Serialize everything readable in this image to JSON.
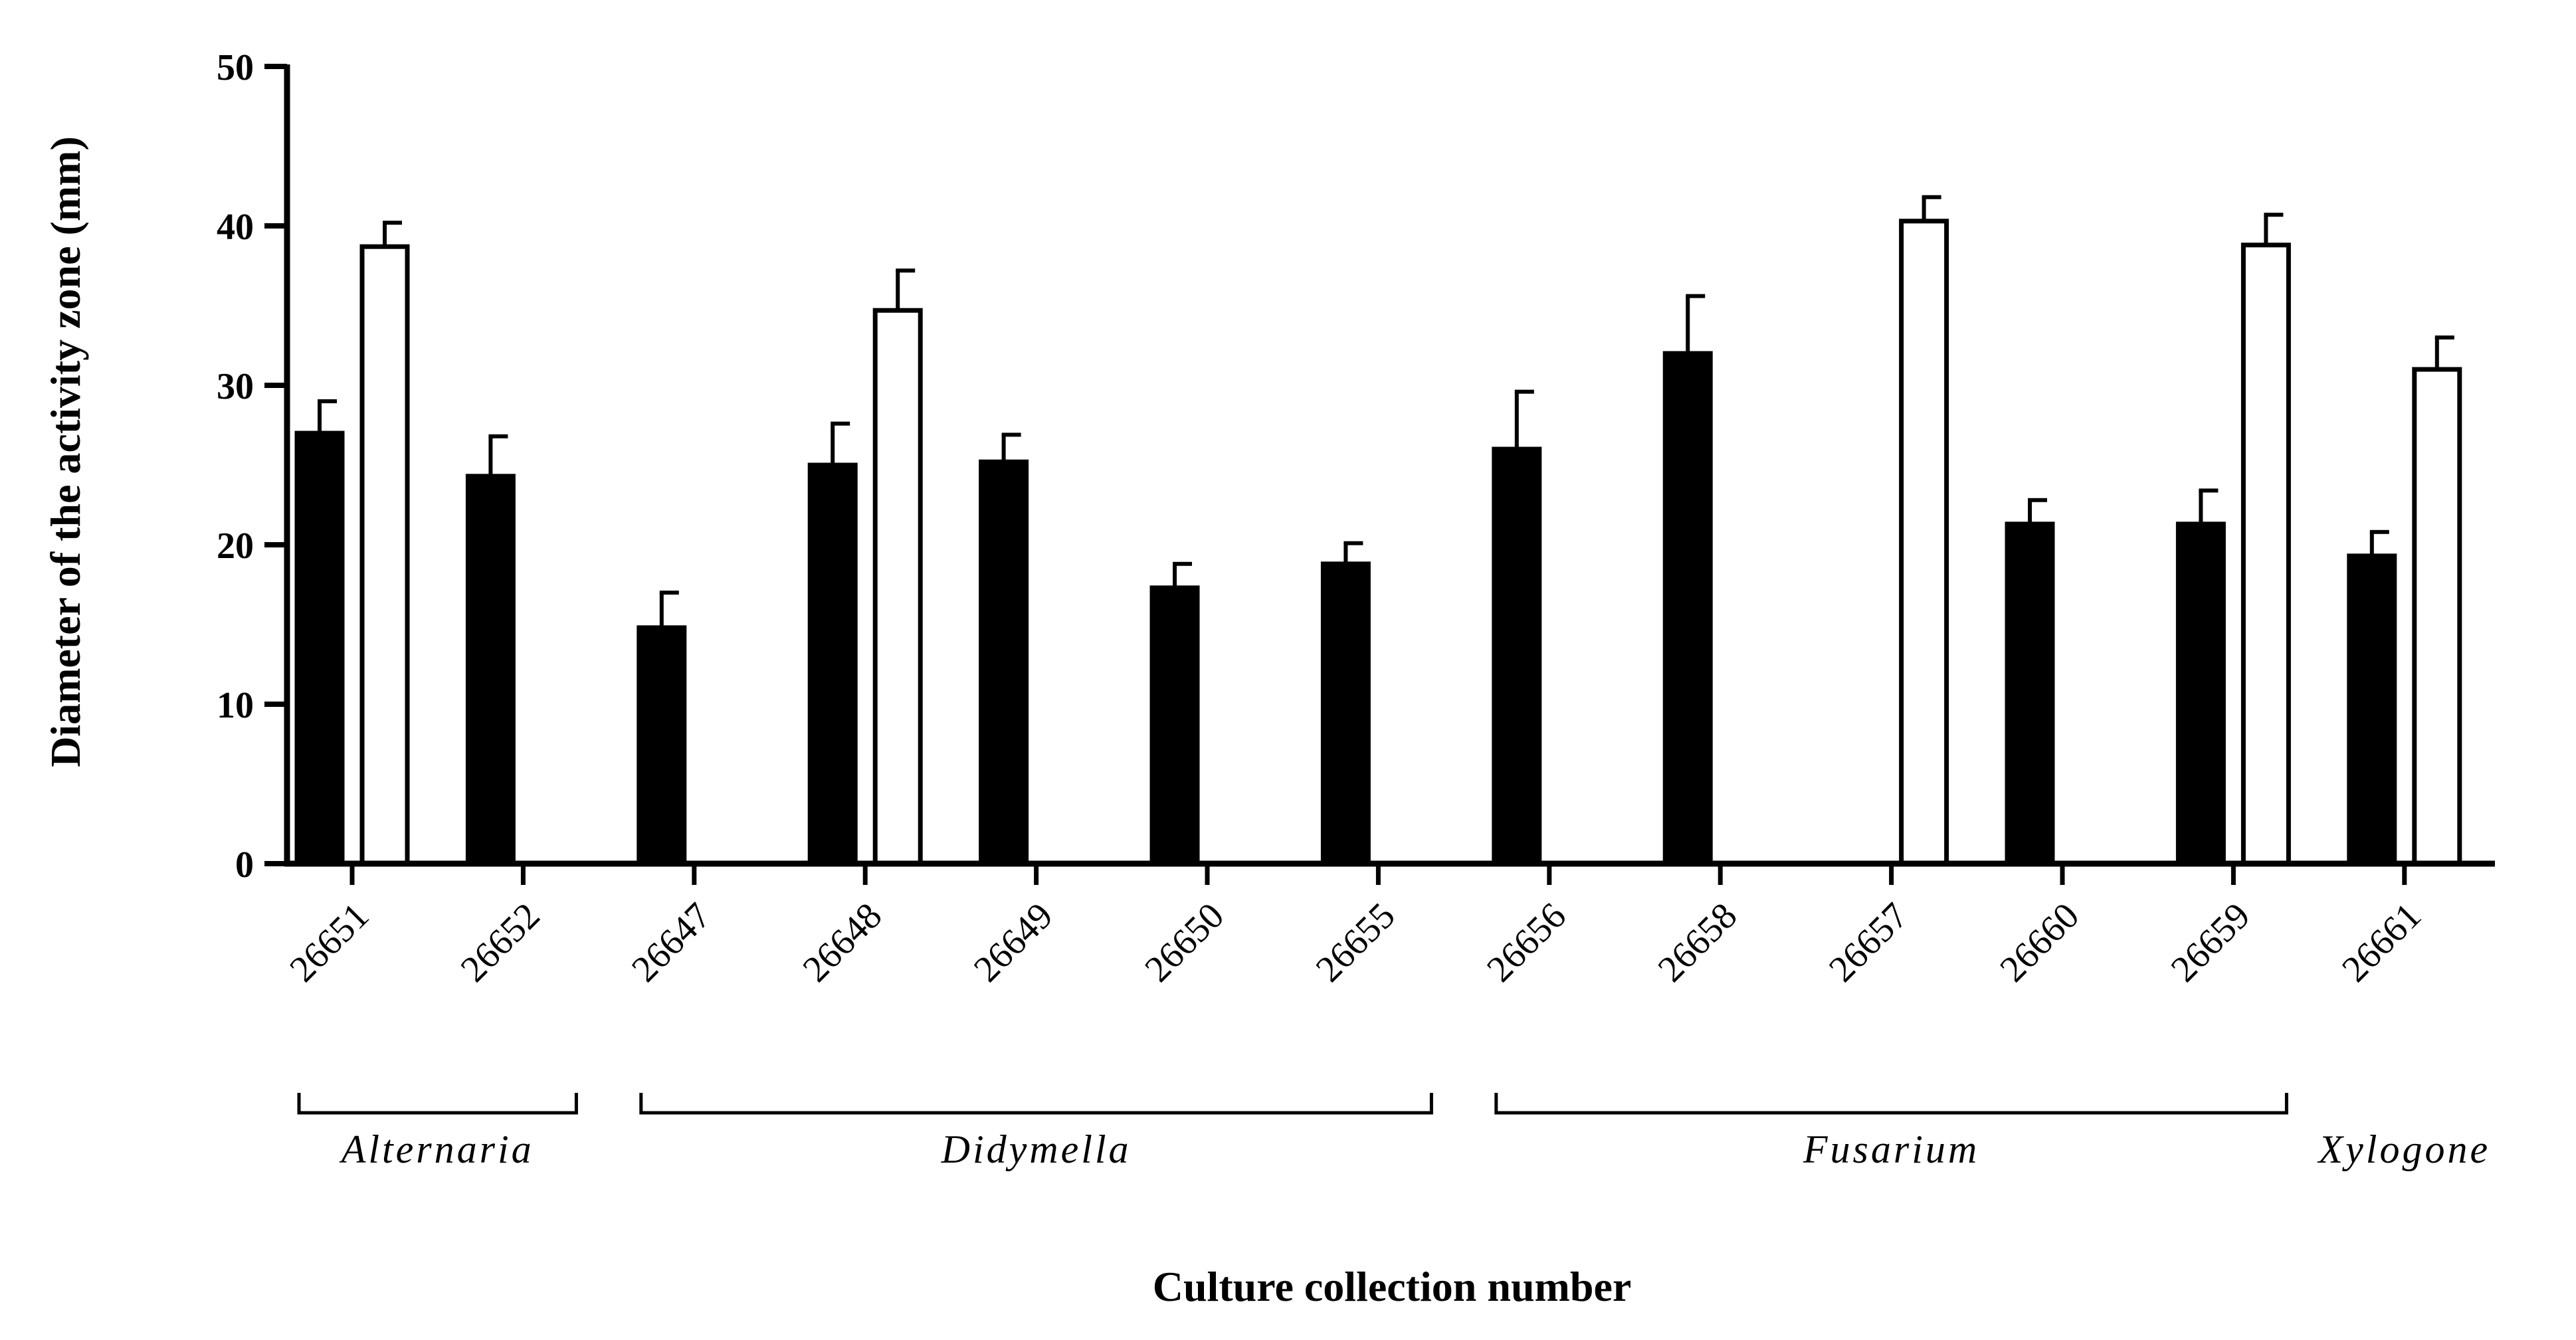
{
  "chart_data": {
    "type": "bar",
    "ylabel": "Diameter of the activity zone (mm)",
    "xlabel": "Culture collection number",
    "ylim": [
      0,
      50
    ],
    "yticks": [
      0,
      10,
      20,
      30,
      40,
      50
    ],
    "categories": [
      "26651",
      "26652",
      "26647",
      "26648",
      "26649",
      "26650",
      "26655",
      "26656",
      "26658",
      "26657",
      "26660",
      "26659",
      "26661"
    ],
    "series": [
      {
        "fill": "#000000",
        "values": [
          27,
          24.3,
          14.8,
          25,
          25.2,
          17.3,
          18.8,
          26,
          32,
          0,
          21.3,
          21.3,
          19.3
        ],
        "errors": [
          2,
          2.5,
          2.2,
          2.6,
          1.7,
          1.5,
          1.3,
          3.6,
          3.6,
          0,
          1.5,
          2.1,
          1.5
        ]
      },
      {
        "fill": "#ffffff",
        "values": [
          38.7,
          0,
          0,
          34.7,
          0,
          0,
          0,
          0,
          0,
          40.3,
          0,
          38.8,
          31
        ],
        "errors": [
          1.5,
          0,
          0,
          2.5,
          0,
          0,
          0,
          0,
          0,
          1.5,
          0,
          1.9,
          2
        ]
      }
    ],
    "groups": [
      {
        "label": "Alternaria",
        "from": 0,
        "to": 1
      },
      {
        "label": "Didymella",
        "from": 2,
        "to": 6
      },
      {
        "label": "Fusarium",
        "from": 7,
        "to": 11
      },
      {
        "label": "Xylogone",
        "from": 12,
        "to": 12
      }
    ],
    "grid": false,
    "legend": "none"
  }
}
